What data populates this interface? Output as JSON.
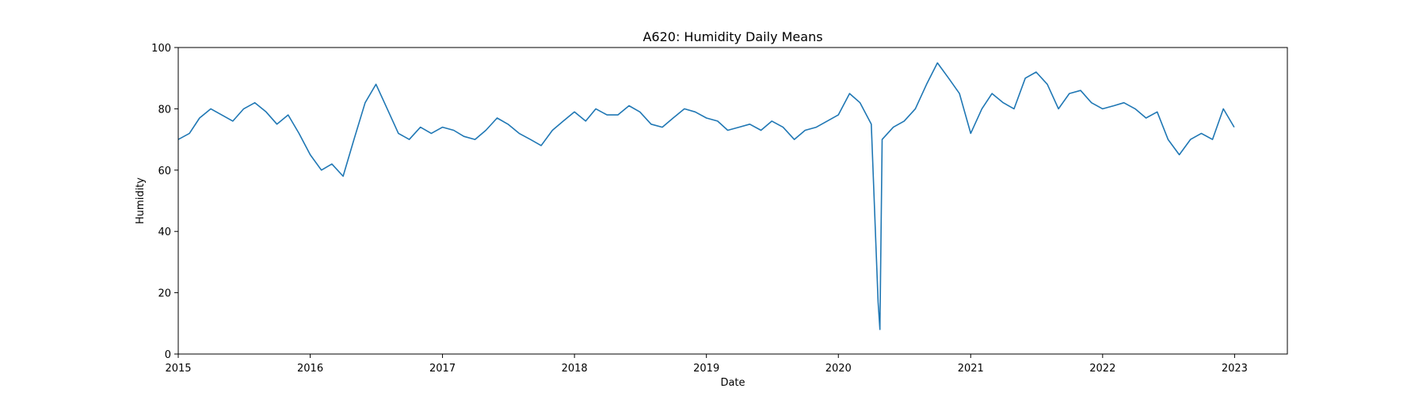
{
  "chart_data": {
    "type": "line",
    "title": "A620: Humidity Daily Means",
    "xlabel": "Date",
    "ylabel": "Humidity",
    "xlim": [
      "2015-01-01",
      "2023-05-27"
    ],
    "ylim": [
      0,
      100
    ],
    "x_ticks": [
      "2015",
      "2016",
      "2017",
      "2018",
      "2019",
      "2020",
      "2021",
      "2022",
      "2023"
    ],
    "y_ticks": [
      "0",
      "20",
      "40",
      "60",
      "80",
      "100"
    ],
    "grid": false,
    "legend": "none",
    "colors": {
      "line": "#1f77b4"
    },
    "series": [
      {
        "x": [
          "2015-01-01",
          "2015-02-01",
          "2015-03-01",
          "2015-04-01",
          "2015-05-01",
          "2015-06-01",
          "2015-07-01",
          "2015-08-01",
          "2015-09-01",
          "2015-10-01",
          "2015-11-01",
          "2015-12-01",
          "2016-01-01",
          "2016-02-01",
          "2016-03-01",
          "2016-04-01",
          "2016-05-01",
          "2016-06-01",
          "2016-07-01",
          "2016-08-01",
          "2016-09-01",
          "2016-10-01",
          "2016-11-01",
          "2016-12-01",
          "2017-01-01",
          "2017-02-01",
          "2017-03-01",
          "2017-04-01",
          "2017-05-01",
          "2017-06-01",
          "2017-07-01",
          "2017-08-01",
          "2017-09-01",
          "2017-10-01",
          "2017-11-01",
          "2017-12-01",
          "2018-01-01",
          "2018-02-01",
          "2018-03-01",
          "2018-04-01",
          "2018-05-01",
          "2018-06-01",
          "2018-07-01",
          "2018-08-01",
          "2018-09-01",
          "2018-10-01",
          "2018-11-01",
          "2018-12-01",
          "2019-01-01",
          "2019-02-01",
          "2019-03-01",
          "2019-04-01",
          "2019-05-01",
          "2019-06-01",
          "2019-07-01",
          "2019-08-01",
          "2019-09-01",
          "2019-10-01",
          "2019-11-01",
          "2019-12-01",
          "2020-01-01",
          "2020-02-01",
          "2020-03-01",
          "2020-04-01",
          "2020-04-20",
          "2020-04-25",
          "2020-05-01",
          "2020-06-01",
          "2020-07-01",
          "2020-08-01",
          "2020-09-01",
          "2020-10-01",
          "2020-11-01",
          "2020-12-01",
          "2021-01-01",
          "2021-02-01",
          "2021-03-01",
          "2021-04-01",
          "2021-05-01",
          "2021-06-01",
          "2021-07-01",
          "2021-08-01",
          "2021-09-01",
          "2021-10-01",
          "2021-11-01",
          "2021-12-01",
          "2022-01-01",
          "2022-02-01",
          "2022-03-01",
          "2022-04-01",
          "2022-05-01",
          "2022-06-01",
          "2022-07-01",
          "2022-08-01",
          "2022-09-01",
          "2022-10-01",
          "2022-11-01",
          "2022-12-01",
          "2022-12-31"
        ],
        "values": [
          70,
          72,
          77,
          80,
          78,
          76,
          80,
          82,
          79,
          75,
          78,
          72,
          65,
          60,
          62,
          58,
          70,
          82,
          88,
          80,
          72,
          70,
          74,
          72,
          74,
          73,
          71,
          70,
          73,
          77,
          75,
          72,
          70,
          68,
          73,
          76,
          79,
          76,
          80,
          78,
          78,
          81,
          79,
          75,
          74,
          77,
          80,
          79,
          77,
          76,
          73,
          74,
          75,
          73,
          76,
          74,
          70,
          73,
          74,
          76,
          78,
          85,
          82,
          75,
          17,
          8,
          70,
          74,
          76,
          80,
          88,
          95,
          90,
          85,
          72,
          80,
          85,
          82,
          80,
          90,
          92,
          88,
          80,
          85,
          86,
          82,
          80,
          81,
          82,
          80,
          77,
          79,
          70,
          65,
          70,
          72,
          70,
          80,
          74
        ]
      }
    ]
  }
}
